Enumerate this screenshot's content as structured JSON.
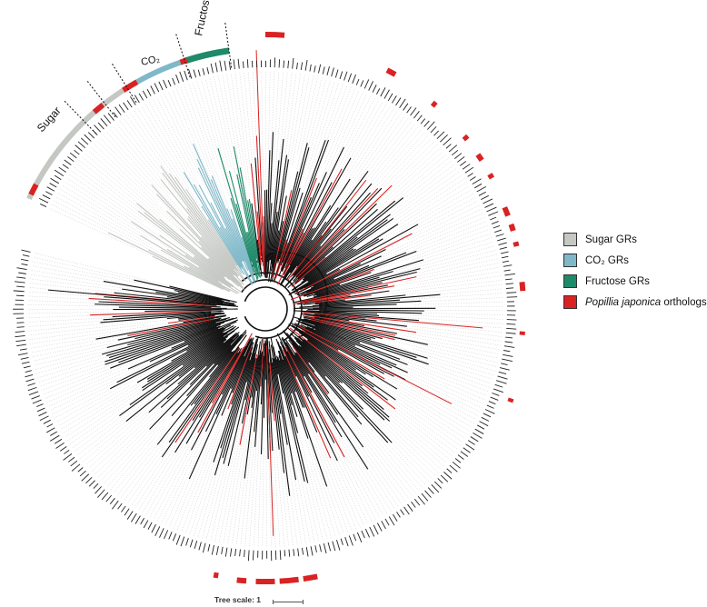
{
  "figure": {
    "type": "circular phylogenetic tree",
    "clade_labels": {
      "sugar": "Sugar",
      "co2": "CO₂",
      "fructose": "Fructose"
    },
    "colors": {
      "sugar": "#c4c7c2",
      "co2": "#7fb8c8",
      "fructose": "#1f8a6a",
      "popillia": "#d92323",
      "branch": "#111111",
      "leader": "#c8c8c8"
    }
  },
  "legend": {
    "items": [
      {
        "label": "Sugar GRs",
        "color": "#c4c7c2"
      },
      {
        "label": "CO₂ GRs",
        "color": "#7fb8c8"
      },
      {
        "label": "Fructose GRs",
        "color": "#1f8a6a"
      }
    ],
    "popillia": {
      "italic": "Popillia japonica",
      "suffix": " orthologs",
      "color": "#d92323"
    }
  },
  "scale": {
    "label": "Tree scale: 1"
  }
}
